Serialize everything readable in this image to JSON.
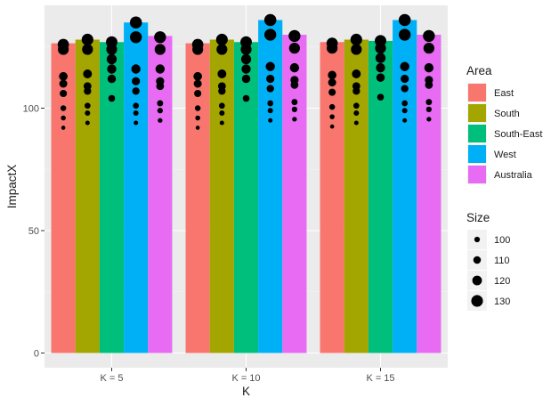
{
  "chart_data": {
    "type": "bar",
    "xlabel": "K",
    "ylabel": "ImpactX",
    "categories": [
      "K = 5",
      "K = 10",
      "K = 15"
    ],
    "ylim": [
      -6,
      142
    ],
    "yticks": [
      0,
      50,
      100
    ],
    "grid": true,
    "legend_position": "right",
    "fill_legend": {
      "title": "Area",
      "entries": [
        {
          "name": "East",
          "color": "#F8766D"
        },
        {
          "name": "South",
          "color": "#A3A500"
        },
        {
          "name": "South-East",
          "color": "#00BF7D"
        },
        {
          "name": "West",
          "color": "#00B0F6"
        },
        {
          "name": "Australia",
          "color": "#E76BF3"
        }
      ]
    },
    "series": [
      {
        "name": "East",
        "color": "#F8766D",
        "values": [
          126.5,
          126.5,
          127
        ]
      },
      {
        "name": "South",
        "color": "#A3A500",
        "values": [
          128,
          128,
          128
        ]
      },
      {
        "name": "South-East",
        "color": "#00BF7D",
        "values": [
          127,
          127,
          127.5
        ]
      },
      {
        "name": "West",
        "color": "#00B0F6",
        "values": [
          135,
          136,
          136
        ]
      },
      {
        "name": "Australia",
        "color": "#E76BF3",
        "values": [
          129.5,
          130,
          130
        ]
      }
    ],
    "size_legend": {
      "title": "Size",
      "breaks": [
        100,
        110,
        120,
        130
      ]
    },
    "points": [
      {
        "series": "East",
        "values": [
          [
            126,
            128
          ],
          [
            124,
            126
          ],
          [
            113,
            115
          ],
          [
            110,
            112
          ],
          [
            106,
            108
          ],
          [
            100,
            101
          ],
          [
            96,
            97
          ],
          [
            92,
            93
          ]
        ]
      },
      {
        "series": "South",
        "values": [
          [
            128,
            130
          ],
          [
            124,
            126
          ],
          [
            114,
            116
          ],
          [
            109,
            111
          ],
          [
            107,
            109
          ],
          [
            101,
            102
          ],
          [
            98,
            99
          ],
          [
            94,
            95
          ]
        ]
      },
      {
        "series": "South-East",
        "values": [
          [
            127,
            129
          ],
          [
            124,
            126
          ],
          [
            120,
            122
          ],
          [
            116,
            118
          ],
          [
            112,
            114
          ],
          [
            104,
            106
          ]
        ]
      },
      {
        "series": "West",
        "values": [
          [
            135,
            133
          ],
          [
            129,
            131
          ],
          [
            116,
            118
          ],
          [
            111,
            113
          ],
          [
            107,
            109
          ],
          [
            101,
            102
          ],
          [
            98,
            99
          ],
          [
            94,
            95
          ]
        ]
      },
      {
        "series": "Australia",
        "values": [
          [
            129,
            131
          ],
          [
            124,
            126
          ],
          [
            116,
            118
          ],
          [
            111,
            113
          ],
          [
            109,
            111
          ],
          [
            102,
            103
          ],
          [
            99,
            100
          ],
          [
            95,
            96
          ]
        ]
      }
    ]
  }
}
